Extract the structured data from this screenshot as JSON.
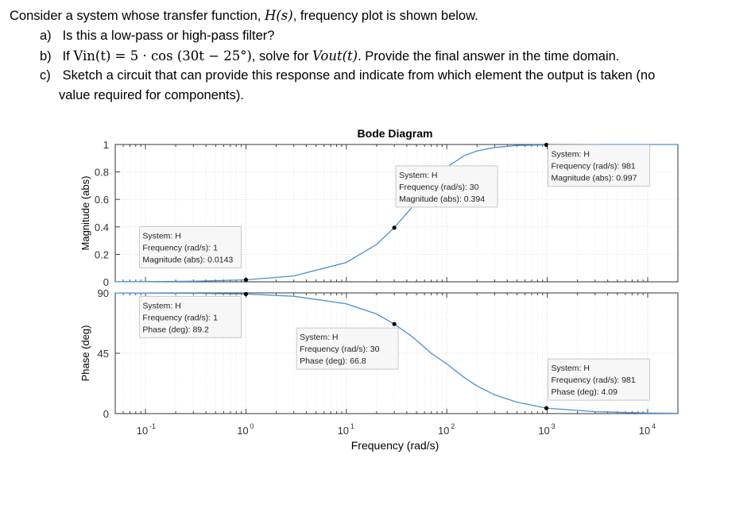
{
  "problem": {
    "intro_pre": "Consider a system whose transfer function, ",
    "intro_var": "H(s)",
    "intro_post": ", frequency plot is shown below.",
    "a_label": "a)",
    "a_text": "Is this a low-pass or high-pass filter?",
    "b_label": "b)",
    "b_text_1": "If ",
    "b_math_in": "Vin(t) = 5 · cos (30t − 25°)",
    "b_text_2": ", solve for ",
    "b_math_out": "Vout(t)",
    "b_text_3": ". Provide the final answer in the time domain.",
    "c_label": "c)",
    "c_line1": "Sketch a circuit that can provide this response and indicate from which element the output is taken (no",
    "c_line2": "value required for components)."
  },
  "chart_data": {
    "type": "line",
    "title": "Bode Diagram",
    "xlabel": "Frequency (rad/s)",
    "xscale": "log",
    "xlim": [
      0.05,
      20000
    ],
    "x_tick_labels": [
      "10-1",
      "100",
      "101",
      "102",
      "103",
      "104"
    ],
    "x_tick_values": [
      0.1,
      1,
      10,
      100,
      1000,
      10000
    ],
    "line_color": "#4a90d0",
    "panels": [
      {
        "name": "magnitude",
        "ylabel": "Magnitude (abs)",
        "ylim": [
          0,
          1
        ],
        "y_ticks": [
          "0",
          "0.2",
          "0.4",
          "0.6",
          "0.8",
          "1"
        ],
        "y_tick_values": [
          0,
          0.2,
          0.4,
          0.6,
          0.8,
          1
        ],
        "series": [
          {
            "x": [
              0.05,
              0.1,
              0.3,
              1,
              3,
              10,
              20,
              30,
              45,
              70,
              100,
              150,
              200,
              300,
              500,
              981,
              3000,
              10000,
              20000
            ],
            "y": [
              0.0007,
              0.0014,
              0.0043,
              0.0143,
              0.043,
              0.141,
              0.272,
              0.394,
              0.543,
              0.731,
              0.835,
              0.919,
              0.953,
              0.978,
              0.993,
              0.997,
              0.9995,
              0.9999,
              1.0
            ]
          }
        ],
        "datatips": [
          {
            "system": "System: H",
            "freq": "Frequency (rad/s): 1",
            "value": "Magnitude (abs): 0.0143",
            "x": 1,
            "y": 0.0143
          },
          {
            "system": "System: H",
            "freq": "Frequency (rad/s): 30",
            "value": "Magnitude (abs): 0.394",
            "x": 30,
            "y": 0.394
          },
          {
            "system": "System: H",
            "freq": "Frequency (rad/s): 981",
            "value": "Magnitude (abs): 0.997",
            "x": 981,
            "y": 0.997
          }
        ]
      },
      {
        "name": "phase",
        "ylabel": "Phase (deg)",
        "ylim": [
          0,
          90
        ],
        "y_ticks": [
          "0",
          "45",
          "90"
        ],
        "y_tick_values": [
          0,
          45,
          90
        ],
        "series": [
          {
            "x": [
              0.05,
              0.1,
              0.3,
              1,
              3,
              10,
              20,
              30,
              45,
              70,
              100,
              150,
              200,
              300,
              500,
              981,
              3000,
              10000,
              20000
            ],
            "y": [
              89.96,
              89.9,
              89.7,
              89.2,
              87.5,
              81.9,
              74.3,
              66.8,
              57.5,
              45.0,
              37.0,
              26.8,
              20.6,
              14.0,
              8.5,
              4.09,
              1.4,
              0.4,
              0.2
            ]
          }
        ],
        "datatips": [
          {
            "system": "System: H",
            "freq": "Frequency (rad/s): 1",
            "value": "Phase (deg): 89.2",
            "x": 1,
            "y": 89.2
          },
          {
            "system": "System: H",
            "freq": "Frequency (rad/s): 30",
            "value": "Phase (deg): 66.8",
            "x": 30,
            "y": 66.8
          },
          {
            "system": "System: H",
            "freq": "Frequency (rad/s): 981",
            "value": "Phase (deg): 4.09",
            "x": 981,
            "y": 4.09
          }
        ]
      }
    ]
  }
}
